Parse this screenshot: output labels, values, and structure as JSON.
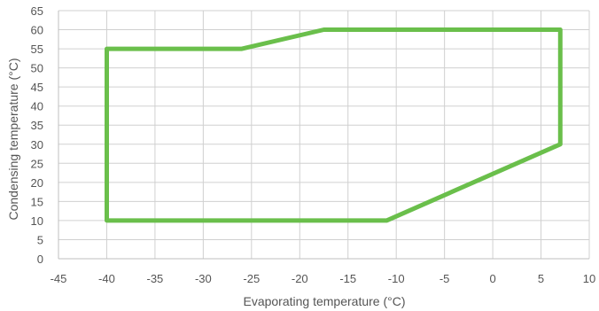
{
  "chart_data": {
    "type": "line",
    "title": "",
    "xlabel": "Evaporating temperature (°C)",
    "ylabel": "Condensing temperature (°C)",
    "xlim": [
      -45,
      10
    ],
    "ylim": [
      0,
      65
    ],
    "xticks": [
      -45,
      -40,
      -35,
      -30,
      -25,
      -20,
      -15,
      -10,
      -5,
      0,
      5,
      10
    ],
    "yticks": [
      0,
      5,
      10,
      15,
      20,
      25,
      30,
      35,
      40,
      45,
      50,
      55,
      60,
      65
    ],
    "xtick_labels": [
      "-45",
      "-40",
      "-35",
      "-30",
      "-25",
      "-20",
      "-15",
      "-10",
      "-5",
      "0",
      "5",
      "10"
    ],
    "ytick_labels": [
      "0",
      "5",
      "10",
      "15",
      "20",
      "25",
      "30",
      "35",
      "40",
      "45",
      "50",
      "55",
      "60",
      "65"
    ],
    "grid": true,
    "legend": "none",
    "series": [
      {
        "color": "#6abf4b",
        "closed": true,
        "points": [
          [
            -40,
            10
          ],
          [
            -40,
            55
          ],
          [
            -26,
            55
          ],
          [
            -17.5,
            60
          ],
          [
            7,
            60
          ],
          [
            7,
            30
          ],
          [
            -11,
            10
          ],
          [
            -40,
            10
          ]
        ]
      }
    ]
  }
}
